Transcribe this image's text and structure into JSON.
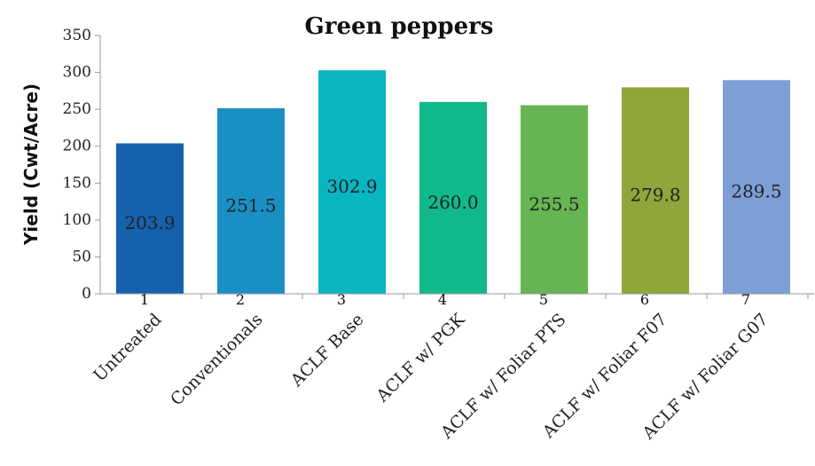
{
  "chart_data": {
    "type": "bar",
    "title": "Green peppers",
    "xlabel": "",
    "ylabel": "Yield (Cwt/Acre)",
    "ylim": [
      0,
      350
    ],
    "yticks": [
      "0",
      "50",
      "100",
      "150",
      "200",
      "250",
      "300",
      "350"
    ],
    "categories": [
      "Untreated",
      "Conventionals",
      "ACLF Base",
      "ACLF w/ PGK",
      "ACLF w/ Foliar PTS",
      "ACLF w/ Foliar F07",
      "ACLF w/ Foliar G07"
    ],
    "bar_numbers": [
      "1",
      "2",
      "3",
      "4",
      "5",
      "6",
      "7"
    ],
    "values": [
      203.9,
      251.5,
      302.9,
      260.0,
      255.5,
      279.8,
      289.5
    ],
    "value_labels": [
      "203.9",
      "251.5",
      "302.9",
      "260.0",
      "255.5",
      "279.8",
      "289.5"
    ],
    "colors": [
      "#1661ae",
      "#1a8fc4",
      "#08b6c2",
      "#10b98c",
      "#66b552",
      "#8fa63a",
      "#7e9ed8"
    ],
    "grid": false,
    "legend": "none"
  }
}
